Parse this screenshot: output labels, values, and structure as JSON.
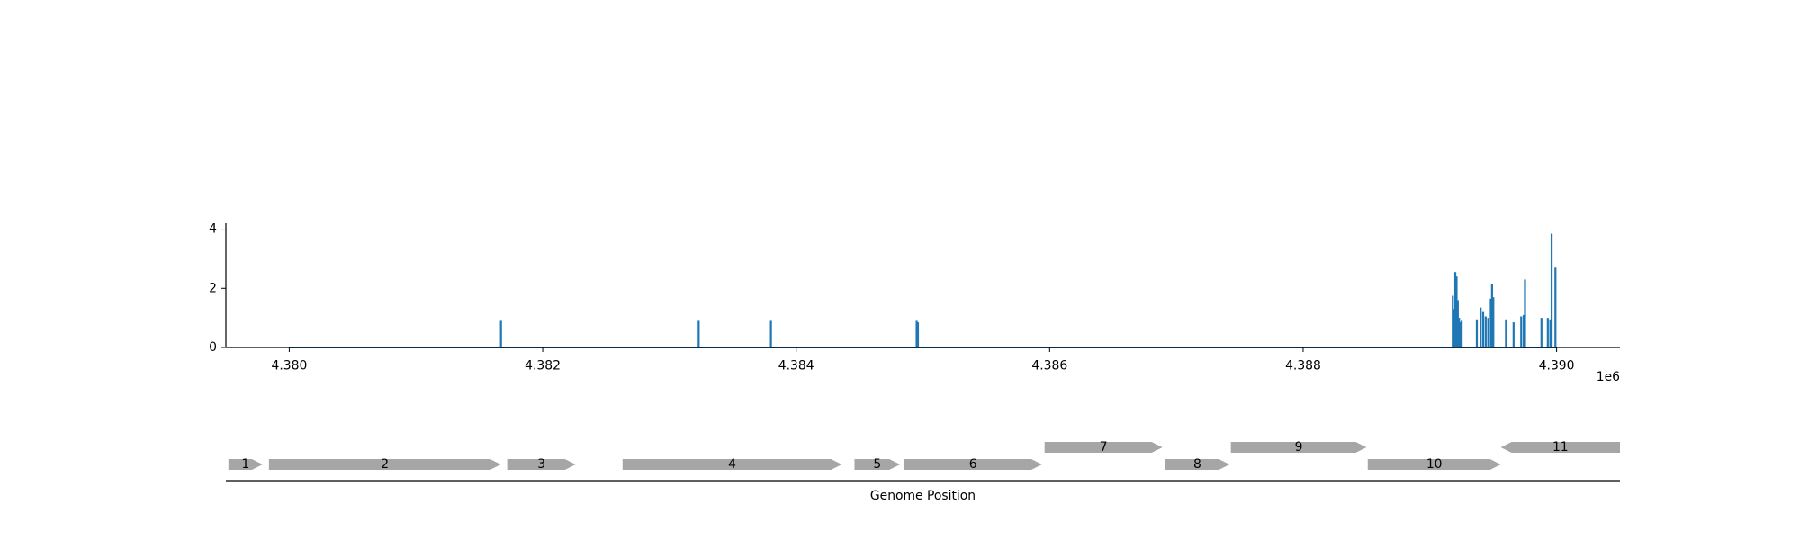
{
  "chart_data": [
    {
      "type": "bar",
      "title": "",
      "xlabel": "",
      "ylabel": "",
      "x_offset_label": "1e6",
      "xlim": [
        4379500,
        4390500
      ],
      "ylim": [
        0,
        4.2
      ],
      "x_ticks": [
        4380000,
        4382000,
        4384000,
        4386000,
        4388000,
        4390000
      ],
      "x_tick_labels": [
        "4.380",
        "4.382",
        "4.384",
        "4.386",
        "4.388",
        "4.390"
      ],
      "y_ticks": [
        0,
        2,
        4
      ],
      "y_tick_labels": [
        "0",
        "2",
        "4"
      ],
      "grid": false,
      "color": "#1f77b4",
      "baseline": {
        "x_start": 4380000,
        "x_end": 4390000,
        "value": 0
      },
      "series": [
        {
          "x": [
            4381670,
            4383230,
            4383800,
            4384950,
            4384960,
            4389180,
            4389190,
            4389200,
            4389210,
            4389220,
            4389230,
            4389240,
            4389250,
            4389370,
            4389400,
            4389420,
            4389440,
            4389460,
            4389480,
            4389490,
            4389500,
            4389600,
            4389660,
            4389720,
            4389740,
            4389750,
            4389880,
            4389930,
            4389950,
            4389960,
            4389990
          ],
          "values": [
            0.9,
            0.9,
            0.9,
            0.9,
            0.85,
            1.75,
            1.3,
            2.55,
            2.4,
            1.6,
            1.0,
            0.85,
            0.9,
            0.95,
            1.35,
            1.2,
            1.05,
            1.0,
            1.65,
            2.15,
            1.7,
            0.95,
            0.85,
            1.05,
            1.1,
            2.3,
            1.0,
            1.0,
            0.95,
            3.85,
            2.7
          ]
        }
      ]
    },
    {
      "type": "gene-map",
      "xlabel": "Genome Position",
      "xlim": [
        4379500,
        4390500
      ],
      "color": "#a6a6a6",
      "genes": [
        {
          "label": "1",
          "start": 4379520,
          "end": 4379790,
          "strand": "+",
          "row": 0
        },
        {
          "label": "2",
          "start": 4379840,
          "end": 4381670,
          "strand": "+",
          "row": 0
        },
        {
          "label": "3",
          "start": 4381720,
          "end": 4382260,
          "strand": "+",
          "row": 0
        },
        {
          "label": "4",
          "start": 4382630,
          "end": 4384360,
          "strand": "+",
          "row": 0
        },
        {
          "label": "5",
          "start": 4384460,
          "end": 4384820,
          "strand": "+",
          "row": 0
        },
        {
          "label": "6",
          "start": 4384850,
          "end": 4385940,
          "strand": "+",
          "row": 0
        },
        {
          "label": "7",
          "start": 4385960,
          "end": 4386890,
          "strand": "+",
          "row": 1
        },
        {
          "label": "8",
          "start": 4386910,
          "end": 4387420,
          "strand": "+",
          "row": 0
        },
        {
          "label": "9",
          "start": 4387430,
          "end": 4388500,
          "strand": "+",
          "row": 1
        },
        {
          "label": "10",
          "start": 4388510,
          "end": 4389560,
          "strand": "+",
          "row": 0
        },
        {
          "label": "11",
          "start": 4389560,
          "end": 4390500,
          "strand": "-",
          "row": 1
        }
      ]
    }
  ]
}
